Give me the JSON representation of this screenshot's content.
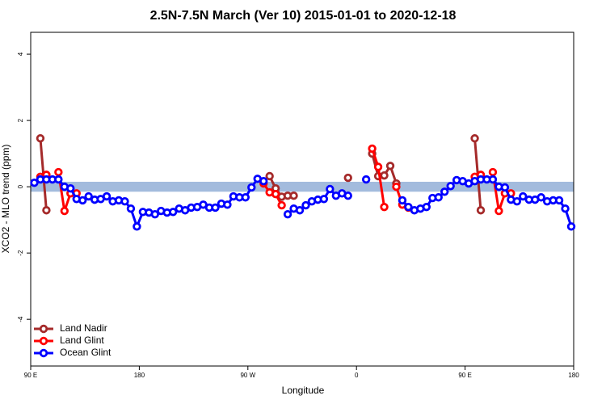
{
  "chart_data": {
    "type": "line",
    "title": "2.5N-7.5N March (Ver 10)   2015-01-01 to 2020-12-18",
    "x_label": "Longitude",
    "y_label": "XCO2 - MLO trend (ppm)",
    "xlim": [
      90,
      540
    ],
    "ylim": [
      -5.41,
      4.66
    ],
    "xticks": [
      {
        "value": 90,
        "label": "90 E"
      },
      180,
      {
        "value": 270,
        "label": "90 W"
      },
      {
        "value": 360,
        "label": "0"
      },
      {
        "value": 450,
        "label": "90 E"
      },
      {
        "value": 540,
        "label": "180"
      }
    ],
    "yticks": [
      -4,
      -2,
      0,
      2,
      4
    ],
    "reference_band": [
      -0.15,
      0.15
    ],
    "reference_band_color": "#a3bbdd",
    "legend": "bottom-left",
    "x": [
      93,
      98,
      103,
      108,
      113,
      118,
      123,
      128,
      133,
      138,
      143,
      148,
      153,
      158,
      163,
      168,
      173,
      178,
      183,
      188,
      193,
      198,
      203,
      208,
      213,
      218,
      223,
      228,
      233,
      238,
      243,
      248,
      253,
      258,
      263,
      268,
      273,
      278,
      283,
      288,
      293,
      298,
      303,
      308,
      313,
      318,
      323,
      328,
      333,
      338,
      343,
      348,
      353,
      358,
      363,
      368,
      373,
      378,
      383,
      388,
      393,
      398,
      403,
      408,
      413,
      418,
      423,
      428,
      433,
      438,
      443,
      448,
      453,
      458,
      463,
      468,
      473,
      478,
      483,
      488,
      493,
      498,
      503,
      508,
      513,
      518,
      523,
      528,
      533,
      538
    ],
    "series": [
      {
        "name": "Land Nadir",
        "color": "#a52a2a",
        "values": [
          null,
          1.46,
          -0.71,
          null,
          null,
          null,
          null,
          null,
          null,
          null,
          null,
          null,
          null,
          null,
          null,
          null,
          null,
          null,
          null,
          null,
          null,
          null,
          null,
          null,
          null,
          null,
          null,
          null,
          null,
          null,
          null,
          null,
          null,
          null,
          null,
          null,
          null,
          null,
          null,
          0.32,
          -0.05,
          -0.3,
          -0.27,
          -0.27,
          null,
          null,
          null,
          null,
          null,
          null,
          null,
          null,
          0.27,
          null,
          null,
          null,
          1.0,
          0.32,
          0.34,
          0.63,
          0.1,
          null,
          null,
          null,
          null,
          null,
          null,
          null,
          null,
          null,
          null,
          null,
          null,
          1.46,
          -0.71,
          null,
          null,
          null,
          null,
          null,
          null,
          null,
          null,
          null,
          null,
          null,
          null,
          null,
          null,
          null
        ]
      },
      {
        "name": "Land Glint",
        "color": "#ff0000",
        "values": [
          null,
          0.3,
          0.36,
          null,
          0.44,
          -0.73,
          -0.2,
          -0.2,
          null,
          null,
          null,
          null,
          null,
          null,
          null,
          null,
          null,
          null,
          null,
          null,
          null,
          null,
          null,
          null,
          null,
          null,
          null,
          null,
          null,
          null,
          null,
          null,
          null,
          null,
          null,
          null,
          null,
          null,
          0.1,
          -0.17,
          -0.22,
          -0.56,
          null,
          null,
          null,
          null,
          null,
          null,
          null,
          null,
          null,
          null,
          null,
          null,
          null,
          null,
          1.15,
          0.6,
          -0.61,
          null,
          0,
          -0.54,
          -0.63,
          null,
          null,
          null,
          null,
          null,
          null,
          null,
          null,
          null,
          null,
          0.3,
          0.36,
          null,
          0.44,
          -0.73,
          -0.2,
          -0.2,
          null,
          null,
          null,
          null,
          null,
          null,
          null,
          null,
          null,
          null
        ]
      },
      {
        "name": "Ocean Glint",
        "color": "#0000ff",
        "values": [
          0.12,
          0.22,
          0.22,
          0.22,
          0.22,
          0,
          -0.05,
          -0.37,
          -0.41,
          -0.29,
          -0.39,
          -0.37,
          -0.29,
          -0.44,
          -0.41,
          -0.44,
          -0.66,
          -1.2,
          -0.76,
          -0.78,
          -0.83,
          -0.73,
          -0.78,
          -0.76,
          -0.66,
          -0.71,
          -0.63,
          -0.61,
          -0.54,
          -0.63,
          -0.63,
          -0.51,
          -0.54,
          -0.29,
          -0.32,
          -0.32,
          -0.02,
          0.24,
          0.17,
          null,
          null,
          null,
          -0.83,
          -0.66,
          -0.71,
          -0.56,
          -0.44,
          -0.39,
          -0.37,
          -0.07,
          -0.27,
          -0.2,
          -0.27,
          null,
          null,
          0.22,
          null,
          null,
          null,
          null,
          null,
          -0.41,
          -0.61,
          -0.71,
          -0.66,
          -0.61,
          -0.34,
          -0.32,
          -0.15,
          0.02,
          0.2,
          0.17,
          0.1,
          0.17,
          0.22,
          0.22,
          0.22,
          0,
          -0.02,
          -0.39,
          -0.44,
          -0.29,
          -0.39,
          -0.39,
          -0.32,
          -0.44,
          -0.41,
          -0.41,
          -0.66,
          -1.2
        ]
      }
    ]
  }
}
